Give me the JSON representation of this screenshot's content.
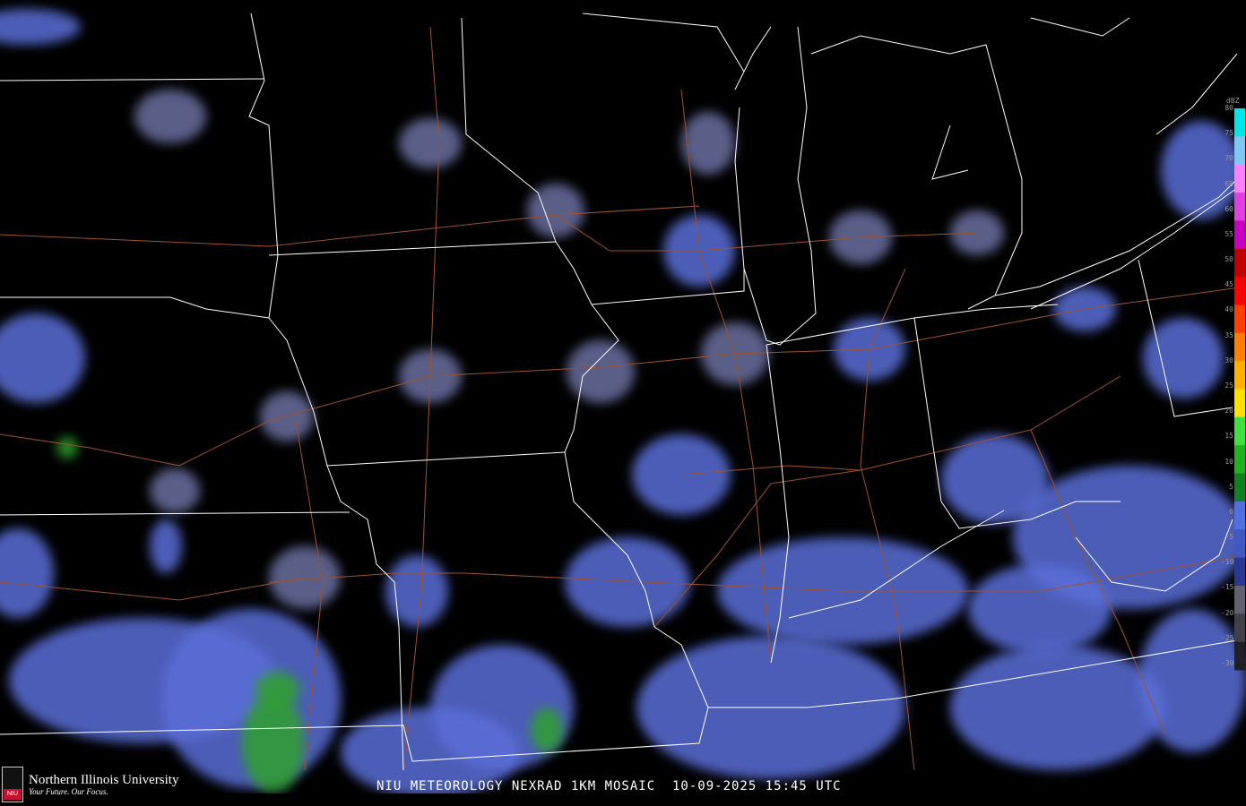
{
  "title": "NIU METEOROLOGY NEXRAD 1KM MOSAIC  10-09-2025 15:45 UTC",
  "logo": {
    "name": "Northern Illinois University",
    "tagline": "Your Future. Our Focus.",
    "badge": "NIU"
  },
  "colorbar": {
    "unit": "dBZ",
    "labels": [
      "80",
      "75",
      "70",
      "65",
      "60",
      "55",
      "50",
      "45",
      "40",
      "35",
      "30",
      "25",
      "20",
      "15",
      "10",
      "5",
      "0",
      "-5",
      "-10",
      "-15",
      "-20",
      "-25",
      "-30"
    ],
    "colors": [
      "#00e5e5",
      "#80c8f0",
      "#ff80ff",
      "#e040e0",
      "#c800c0",
      "#c00000",
      "#ff0000",
      "#ff4000",
      "#ff8000",
      "#ffb000",
      "#ffe000",
      "#40e040",
      "#20b020",
      "#108020",
      "#5070e0",
      "#4058c0",
      "#283890",
      "#606070",
      "#404048",
      "#202024"
    ]
  },
  "map": {
    "border_color": "#ffffff",
    "road_color": "#a0522d",
    "echo_light": "#5a6ed8",
    "echo_moderate": "#2ea02e"
  }
}
